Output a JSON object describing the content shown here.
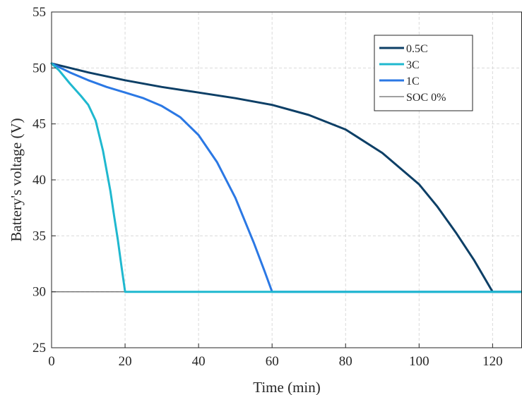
{
  "chart_data": {
    "type": "line",
    "title": "",
    "xlabel": "Time (min)",
    "ylabel": "Battery's voltage (V)",
    "xlim": [
      0,
      128
    ],
    "ylim": [
      25,
      55
    ],
    "xticks": [
      0,
      20,
      40,
      60,
      80,
      100,
      120
    ],
    "yticks": [
      25,
      30,
      35,
      40,
      45,
      50,
      55
    ],
    "grid": true,
    "legend_position": "top-right",
    "series": [
      {
        "name": "0.5C",
        "color": "#0d3f66",
        "x": [
          0,
          5,
          10,
          20,
          30,
          40,
          50,
          60,
          70,
          80,
          90,
          100,
          105,
          110,
          115,
          120,
          128
        ],
        "y": [
          50.4,
          50.0,
          49.6,
          48.9,
          48.3,
          47.8,
          47.3,
          46.7,
          45.8,
          44.5,
          42.4,
          39.6,
          37.6,
          35.3,
          32.8,
          30.0,
          30.0
        ]
      },
      {
        "name": "3C",
        "color": "#1fb8cf",
        "x": [
          0,
          2,
          5,
          8,
          10,
          12,
          14,
          16,
          17,
          18,
          19,
          20,
          128
        ],
        "y": [
          50.4,
          49.8,
          48.6,
          47.5,
          46.7,
          45.3,
          42.6,
          39.0,
          36.8,
          34.7,
          32.3,
          30.0,
          30.0
        ]
      },
      {
        "name": "1C",
        "color": "#2b78e4",
        "x": [
          0,
          5,
          10,
          15,
          20,
          25,
          30,
          35,
          40,
          45,
          50,
          55,
          58,
          60,
          128
        ],
        "y": [
          50.4,
          49.6,
          48.9,
          48.3,
          47.8,
          47.3,
          46.6,
          45.6,
          44.0,
          41.6,
          38.4,
          34.4,
          31.8,
          30.0,
          30.0
        ]
      },
      {
        "name": "SOC 0%",
        "color": "#404040",
        "x": [
          0,
          128
        ],
        "y": [
          30,
          30
        ]
      }
    ]
  }
}
